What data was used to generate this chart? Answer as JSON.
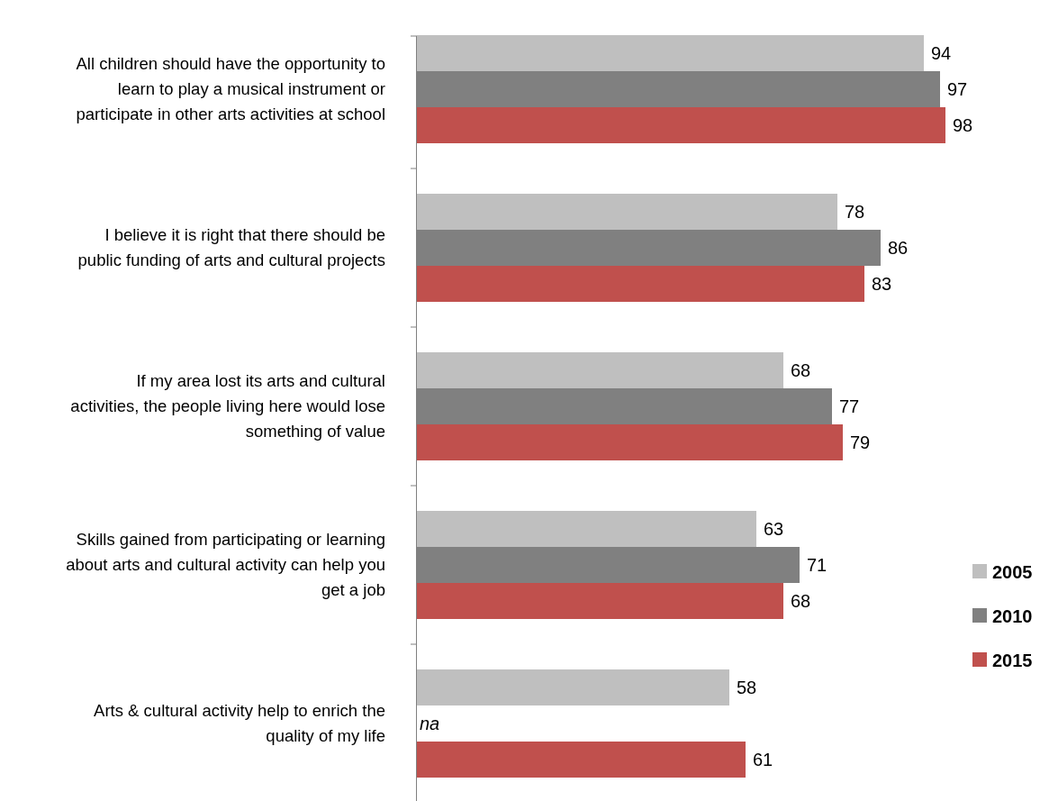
{
  "chart_data": {
    "type": "bar",
    "orientation": "horizontal",
    "data_labels": true,
    "legend": "right",
    "categories": [
      "All children should have the opportunity to learn to play a musical instrument or participate in other arts activities at school",
      "I believe it is right that there should be public funding of arts and cultural projects",
      "If my area lost its arts and cultural activities, the people living here would lose something of value",
      "Skills gained from participating or learning about arts and cultural activity can help you get a job",
      "Arts & cultural activity help to enrich the quality of my life"
    ],
    "series": [
      {
        "name": "2005",
        "color": "#bfbfbf",
        "values": [
          94,
          78,
          68,
          63,
          58
        ]
      },
      {
        "name": "2010",
        "color": "#808080",
        "values": [
          97,
          86,
          77,
          71,
          null
        ]
      },
      {
        "name": "2015",
        "color": "#c0504d",
        "values": [
          98,
          83,
          79,
          68,
          61
        ]
      }
    ],
    "annotations": [
      "na"
    ]
  }
}
